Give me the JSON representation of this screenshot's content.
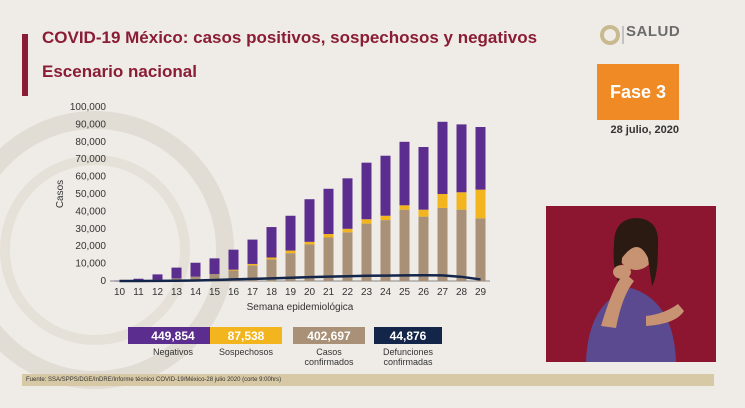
{
  "header": {
    "title": "COVID-19 México: casos positivos, sospechosos y negativos",
    "subtitle": "Escenario nacional"
  },
  "logo": {
    "text": "SALUD"
  },
  "phase": {
    "label": "Fase 3"
  },
  "date": "28 julio, 2020",
  "legend": [
    {
      "value": "449,854",
      "label": "Negativos",
      "color": "#5b2d8e"
    },
    {
      "value": "87,538",
      "label": "Sospechosos",
      "color": "#f2b51e"
    },
    {
      "value": "402,697",
      "label": "Casos confirmados",
      "color": "#a89176"
    },
    {
      "value": "44,876",
      "label": "Defunciones confirmadas",
      "color": "#14254a"
    }
  ],
  "footer": "Fuente: SSA/SPPS/DGE/InDRE/Informe técnico COVID-19/México-28 julio 2020 (corte 9:00hrs)",
  "chart_data": {
    "type": "bar",
    "stacked": true,
    "xlabel": "Semana epidemiológica",
    "ylabel": "Casos",
    "ylim": [
      0,
      100000
    ],
    "yticks": [
      "0",
      "10,000",
      "20,000",
      "30,000",
      "40,000",
      "50,000",
      "60,000",
      "70,000",
      "80,000",
      "90,000",
      "100,000"
    ],
    "grid": false,
    "categories": [
      "10",
      "11",
      "12",
      "13",
      "14",
      "15",
      "16",
      "17",
      "18",
      "19",
      "20",
      "21",
      "22",
      "23",
      "24",
      "25",
      "26",
      "27",
      "28",
      "29"
    ],
    "series": [
      {
        "name": "Casos confirmados",
        "color": "#a89176",
        "values": [
          50,
          300,
          800,
          1500,
          2500,
          4000,
          6000,
          9000,
          12500,
          16000,
          21000,
          25000,
          28000,
          33000,
          35000,
          41000,
          37000,
          42000,
          41000,
          36000
        ]
      },
      {
        "name": "Sospechosos",
        "color": "#f2b51e",
        "values": [
          0,
          0,
          0,
          0,
          0,
          0,
          500,
          800,
          1000,
          1500,
          1500,
          2000,
          2000,
          2500,
          2500,
          2500,
          4000,
          8000,
          10000,
          16500
        ]
      },
      {
        "name": "Negativos",
        "color": "#5b2d8e",
        "values": [
          50,
          1000,
          3000,
          6200,
          8000,
          9000,
          11500,
          14000,
          17500,
          20000,
          24500,
          26000,
          29000,
          32500,
          34500,
          36500,
          36000,
          41500,
          39000,
          36000
        ]
      }
    ],
    "line": {
      "name": "Defunciones confirmadas",
      "color": "#14254a",
      "values": [
        0,
        20,
        50,
        120,
        300,
        600,
        900,
        1200,
        1500,
        1900,
        2200,
        2500,
        2700,
        3000,
        3100,
        3200,
        3300,
        3200,
        2400,
        900
      ]
    }
  }
}
